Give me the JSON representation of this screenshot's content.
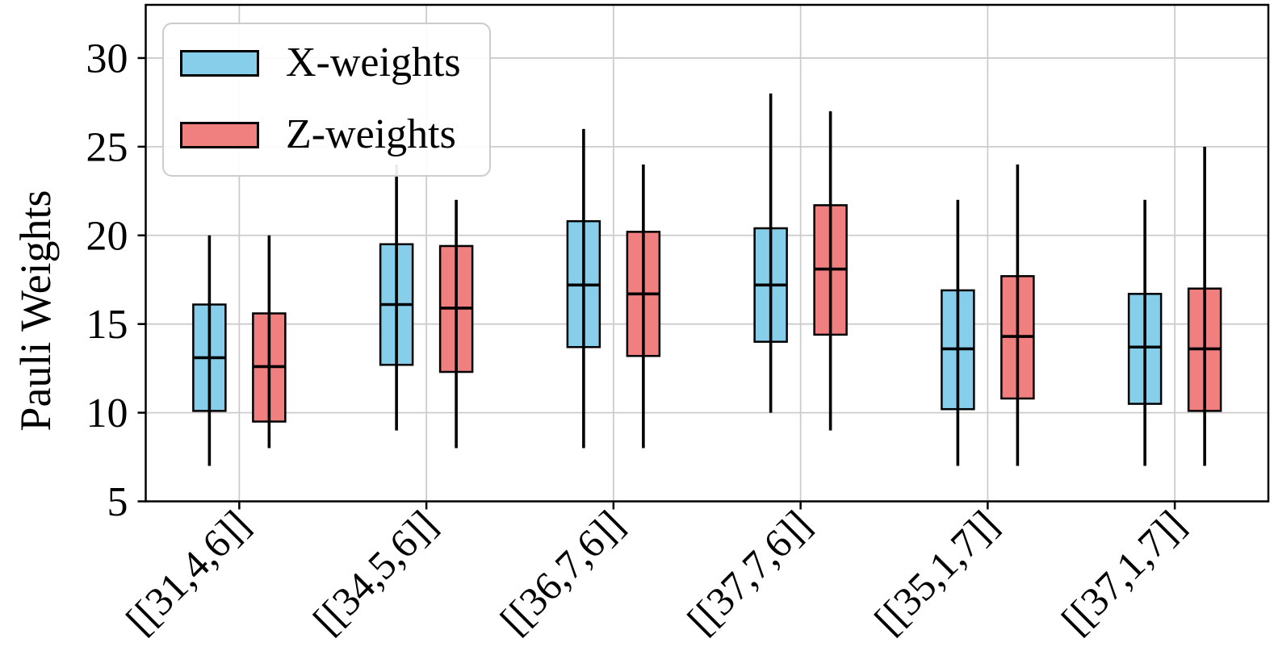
{
  "figure": {
    "background": "#ffffff",
    "text_color": "#000000",
    "grid_color": "#cccccc"
  },
  "legend": {
    "items": [
      {
        "label": "X-weights",
        "color": "#87CEEB"
      },
      {
        "label": "Z-weights",
        "color": "#F08080"
      }
    ]
  },
  "chart_data": {
    "type": "boxplot",
    "title": "",
    "xlabel": "",
    "ylabel": "Pauli Weights",
    "categories": [
      "[[31,4,6]]",
      "[[34,5,6]]",
      "[[36,7,6]]",
      "[[37,7,6]]",
      "[[35,1,7]]",
      "[[37,1,7]]"
    ],
    "y_ticks": [
      5,
      10,
      15,
      20,
      25,
      30
    ],
    "ylim": [
      5,
      33
    ],
    "grid": true,
    "legend_position": "upper left",
    "x_tick_rotation_deg": 45,
    "series": [
      {
        "name": "X-weights",
        "color": "#87CEEB",
        "boxes": [
          {
            "category": "[[31,4,6]]",
            "whisker_low": 7,
            "q1": 10.1,
            "median": 13.1,
            "q3": 16.1,
            "whisker_high": 20
          },
          {
            "category": "[[34,5,6]]",
            "whisker_low": 9,
            "q1": 12.7,
            "median": 16.1,
            "q3": 19.5,
            "whisker_high": 24
          },
          {
            "category": "[[36,7,6]]",
            "whisker_low": 8,
            "q1": 13.7,
            "median": 17.2,
            "q3": 20.8,
            "whisker_high": 26
          },
          {
            "category": "[[37,7,6]]",
            "whisker_low": 10,
            "q1": 14.0,
            "median": 17.2,
            "q3": 20.4,
            "whisker_high": 28
          },
          {
            "category": "[[35,1,7]]",
            "whisker_low": 7,
            "q1": 10.2,
            "median": 13.6,
            "q3": 16.9,
            "whisker_high": 22
          },
          {
            "category": "[[37,1,7]]",
            "whisker_low": 7,
            "q1": 10.5,
            "median": 13.7,
            "q3": 16.7,
            "whisker_high": 22
          }
        ]
      },
      {
        "name": "Z-weights",
        "color": "#F08080",
        "boxes": [
          {
            "category": "[[31,4,6]]",
            "whisker_low": 8,
            "q1": 9.5,
            "median": 12.6,
            "q3": 15.6,
            "whisker_high": 20
          },
          {
            "category": "[[34,5,6]]",
            "whisker_low": 8,
            "q1": 12.3,
            "median": 15.9,
            "q3": 19.4,
            "whisker_high": 22
          },
          {
            "category": "[[36,7,6]]",
            "whisker_low": 8,
            "q1": 13.2,
            "median": 16.7,
            "q3": 20.2,
            "whisker_high": 24
          },
          {
            "category": "[[37,7,6]]",
            "whisker_low": 9,
            "q1": 14.4,
            "median": 18.1,
            "q3": 21.7,
            "whisker_high": 27
          },
          {
            "category": "[[35,1,7]]",
            "whisker_low": 7,
            "q1": 10.8,
            "median": 14.3,
            "q3": 17.7,
            "whisker_high": 24
          },
          {
            "category": "[[37,1,7]]",
            "whisker_low": 7,
            "q1": 10.1,
            "median": 13.6,
            "q3": 17.0,
            "whisker_high": 25
          }
        ]
      }
    ]
  }
}
